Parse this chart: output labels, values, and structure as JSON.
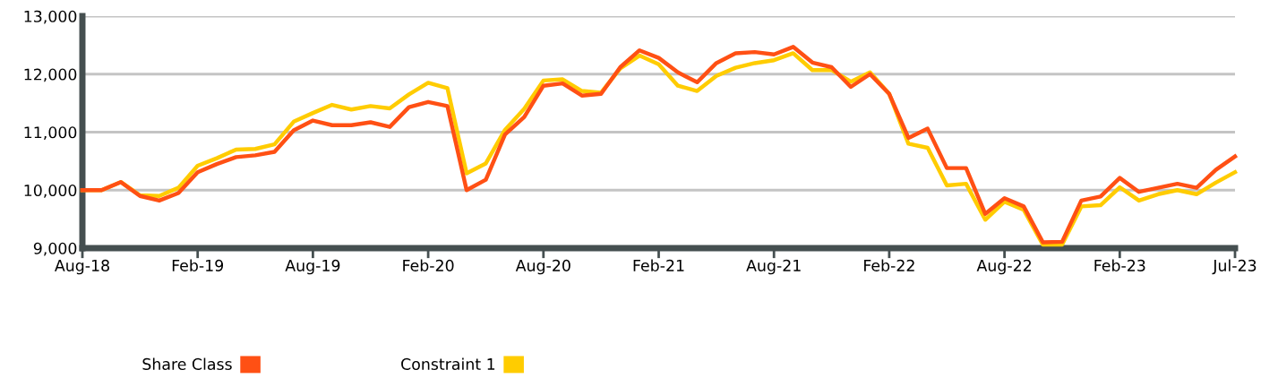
{
  "chart_data": {
    "type": "line",
    "categories": [
      "Aug-18",
      null,
      null,
      null,
      null,
      null,
      "Feb-19",
      null,
      null,
      null,
      null,
      null,
      "Aug-19",
      null,
      null,
      null,
      null,
      null,
      "Feb-20",
      null,
      null,
      null,
      null,
      null,
      "Aug-20",
      null,
      null,
      null,
      null,
      null,
      "Feb-21",
      null,
      null,
      null,
      null,
      null,
      "Aug-21",
      null,
      null,
      null,
      null,
      null,
      "Feb-22",
      null,
      null,
      null,
      null,
      null,
      "Aug-22",
      null,
      null,
      null,
      null,
      null,
      "Feb-23",
      null,
      null,
      null,
      null,
      null,
      "Jul-23"
    ],
    "series": [
      {
        "name": "Share Class",
        "color": "#ff5014",
        "values": [
          10000,
          10000,
          10140,
          9900,
          9820,
          9950,
          10310,
          10450,
          10570,
          10600,
          10660,
          11030,
          11200,
          11120,
          11120,
          11170,
          11090,
          11430,
          11520,
          11450,
          10000,
          10180,
          10960,
          11260,
          11800,
          11840,
          11630,
          11660,
          12120,
          12410,
          12280,
          12030,
          11860,
          12190,
          12360,
          12380,
          12340,
          12470,
          12200,
          12120,
          11780,
          12000,
          11660,
          10900,
          11060,
          10380,
          10380,
          9590,
          9860,
          9720,
          9100,
          9110,
          9820,
          9890,
          10210,
          9970,
          10040,
          10110,
          10040,
          10350,
          10580
        ]
      },
      {
        "name": "Constraint 1",
        "color": "#ffcc00",
        "values": [
          10000,
          10000,
          10140,
          9910,
          9900,
          10040,
          10420,
          10550,
          10700,
          10710,
          10790,
          11180,
          11330,
          11470,
          11390,
          11450,
          11410,
          11650,
          11850,
          11760,
          10290,
          10460,
          11040,
          11400,
          11890,
          11910,
          11710,
          11680,
          12100,
          12320,
          12170,
          11800,
          11710,
          11970,
          12110,
          12190,
          12240,
          12360,
          12070,
          12070,
          11870,
          12030,
          11660,
          10800,
          10730,
          10080,
          10110,
          9490,
          9800,
          9660,
          9060,
          9060,
          9720,
          9740,
          10050,
          9820,
          9930,
          10000,
          9930,
          10130,
          10310
        ]
      }
    ],
    "ylim": [
      9000,
      13000
    ],
    "yticks": [
      {
        "value": 9000,
        "label": "9,000"
      },
      {
        "value": 10000,
        "label": "10,000"
      },
      {
        "value": 11000,
        "label": "11,000"
      },
      {
        "value": 12000,
        "label": "12,000"
      },
      {
        "value": 13000,
        "label": "13,000"
      }
    ],
    "grid": "y",
    "legend": "bottom",
    "marker": "none",
    "line_style": "solid"
  }
}
